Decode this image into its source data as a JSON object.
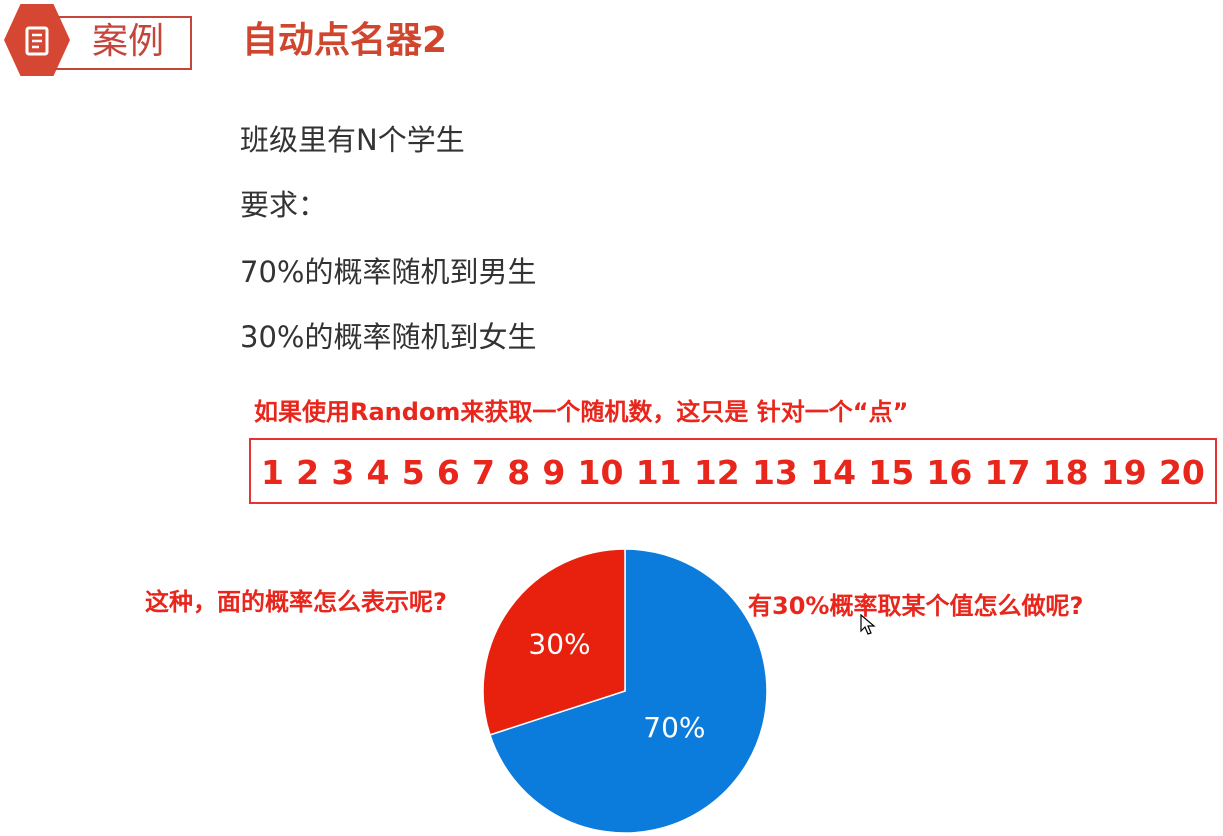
{
  "badge": {
    "label": "案例",
    "icon": "document-icon",
    "color": "#d64733"
  },
  "title": "自动点名器2",
  "body": {
    "line1": "班级里有N个学生",
    "line2": "要求：",
    "line3": "70%的概率随机到男生",
    "line4": "30%的概率随机到女生"
  },
  "notes": {
    "random_note": "如果使用Random来获取一个随机数，这只是 针对一个“点”",
    "area_question": "这种，面的概率怎么表示呢?",
    "value_question": "有30%概率取某个值怎么做呢?"
  },
  "numbers": [
    "1",
    "2",
    "3",
    "4",
    "5",
    "6",
    "7",
    "8",
    "9",
    "10",
    "11",
    "12",
    "13",
    "14",
    "15",
    "16",
    "17",
    "18",
    "19",
    "20"
  ],
  "colors": {
    "accent_red": "#e8261c",
    "pie_blue": "#0b7bdc",
    "pie_red": "#e8210e"
  },
  "chart_data": {
    "type": "pie",
    "slices": [
      {
        "label": "70%",
        "value": 70,
        "color": "#0b7bdc"
      },
      {
        "label": "30%",
        "value": 30,
        "color": "#e8210e"
      }
    ]
  }
}
